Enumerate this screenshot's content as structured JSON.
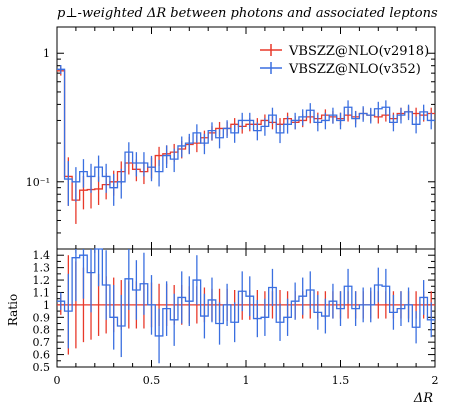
{
  "chart_data": [
    {
      "type": "line",
      "title": "p⊥-weighted ΔR between photons and associated leptons",
      "xlabel": "",
      "ylabel": "",
      "log_y": true,
      "xlim": [
        0,
        2
      ],
      "ylim": [
        0.03,
        1.6
      ],
      "yticks": [
        {
          "value": 1,
          "label": "1"
        },
        {
          "value": 0.1,
          "label": "10⁻¹"
        }
      ],
      "legend": "top-right",
      "bin_edges": [
        0,
        0.04,
        0.08,
        0.12,
        0.16,
        0.2,
        0.24,
        0.28,
        0.32,
        0.36,
        0.4,
        0.44,
        0.48,
        0.52,
        0.56,
        0.6,
        0.64,
        0.68,
        0.72,
        0.76,
        0.8,
        0.84,
        0.88,
        0.92,
        0.96,
        1.0,
        1.04,
        1.08,
        1.12,
        1.16,
        1.2,
        1.24,
        1.28,
        1.32,
        1.36,
        1.4,
        1.44,
        1.48,
        1.52,
        1.56,
        1.6,
        1.64,
        1.68,
        1.72,
        1.76,
        1.8,
        1.84,
        1.88,
        1.92,
        1.96,
        2.0
      ],
      "series": [
        {
          "name": "VBSZZ@NLO(v2918)",
          "color": "#e8392a",
          "values": [
            0.73,
            0.11,
            0.072,
            0.086,
            0.087,
            0.088,
            0.095,
            0.1,
            0.12,
            0.14,
            0.125,
            0.12,
            0.13,
            0.16,
            0.165,
            0.17,
            0.18,
            0.195,
            0.2,
            0.22,
            0.24,
            0.26,
            0.26,
            0.28,
            0.27,
            0.28,
            0.28,
            0.3,
            0.29,
            0.28,
            0.31,
            0.29,
            0.3,
            0.32,
            0.31,
            0.33,
            0.32,
            0.31,
            0.33,
            0.32,
            0.34,
            0.33,
            0.32,
            0.33,
            0.31,
            0.34,
            0.35,
            0.34,
            0.33,
            0.34
          ],
          "errors": [
            0.06,
            0.045,
            0.025,
            0.025,
            0.025,
            0.022,
            0.022,
            0.022,
            0.024,
            0.026,
            0.024,
            0.024,
            0.024,
            0.027,
            0.027,
            0.027,
            0.028,
            0.029,
            0.03,
            0.03,
            0.031,
            0.032,
            0.032,
            0.033,
            0.033,
            0.033,
            0.033,
            0.034,
            0.034,
            0.033,
            0.035,
            0.034,
            0.034,
            0.035,
            0.035,
            0.036,
            0.035,
            0.035,
            0.036,
            0.036,
            0.037,
            0.036,
            0.036,
            0.036,
            0.035,
            0.037,
            0.037,
            0.037,
            0.036,
            0.037
          ]
        },
        {
          "name": "VBSZZ@NLO(v352)",
          "color": "#3a6fe0",
          "values": [
            0.75,
            0.105,
            0.1,
            0.12,
            0.11,
            0.13,
            0.11,
            0.09,
            0.1,
            0.17,
            0.14,
            0.14,
            0.13,
            0.12,
            0.16,
            0.15,
            0.19,
            0.2,
            0.24,
            0.2,
            0.25,
            0.22,
            0.26,
            0.24,
            0.3,
            0.3,
            0.25,
            0.27,
            0.33,
            0.24,
            0.28,
            0.3,
            0.32,
            0.36,
            0.29,
            0.3,
            0.33,
            0.3,
            0.38,
            0.31,
            0.34,
            0.33,
            0.37,
            0.38,
            0.29,
            0.33,
            0.35,
            0.28,
            0.35,
            0.3
          ],
          "errors": [
            0.06,
            0.04,
            0.03,
            0.03,
            0.028,
            0.03,
            0.028,
            0.025,
            0.026,
            0.033,
            0.03,
            0.03,
            0.029,
            0.028,
            0.032,
            0.031,
            0.035,
            0.036,
            0.04,
            0.036,
            0.04,
            0.038,
            0.041,
            0.039,
            0.044,
            0.044,
            0.04,
            0.042,
            0.047,
            0.04,
            0.043,
            0.044,
            0.046,
            0.049,
            0.043,
            0.044,
            0.047,
            0.044,
            0.05,
            0.045,
            0.047,
            0.046,
            0.049,
            0.05,
            0.043,
            0.046,
            0.048,
            0.042,
            0.048,
            0.044
          ]
        }
      ]
    },
    {
      "type": "line",
      "title": "",
      "xlabel": "ΔR",
      "ylabel": "Ratio",
      "xlim": [
        0,
        2
      ],
      "ylim": [
        0.5,
        1.45
      ],
      "xticks": [
        {
          "value": 0,
          "label": "0"
        },
        {
          "value": 0.5,
          "label": "0.5"
        },
        {
          "value": 1,
          "label": "1"
        },
        {
          "value": 1.5,
          "label": "1.5"
        },
        {
          "value": 2,
          "label": "2"
        }
      ],
      "yticks": [
        {
          "value": 0.5,
          "label": "0.5"
        },
        {
          "value": 0.6,
          "label": "0.6"
        },
        {
          "value": 0.7,
          "label": "0.7"
        },
        {
          "value": 0.8,
          "label": "0.8"
        },
        {
          "value": 0.9,
          "label": "0.9"
        },
        {
          "value": 1,
          "label": "1"
        },
        {
          "value": 1.1,
          "label": "1.1"
        },
        {
          "value": 1.2,
          "label": "1.2"
        },
        {
          "value": 1.3,
          "label": "1.3"
        },
        {
          "value": 1.4,
          "label": "1.4"
        }
      ],
      "series": [
        {
          "name": "VBSZZ@NLO(v2918)",
          "color": "#e8392a",
          "values": [
            1,
            1,
            1,
            1,
            1,
            1,
            1,
            1,
            1,
            1,
            1,
            1,
            1,
            1,
            1,
            1,
            1,
            1,
            1,
            1,
            1,
            1,
            1,
            1,
            1,
            1,
            1,
            1,
            1,
            1,
            1,
            1,
            1,
            1,
            1,
            1,
            1,
            1,
            1,
            1,
            1,
            1,
            1,
            1,
            1,
            1,
            1,
            1,
            1,
            1
          ],
          "errors": [
            0.08,
            0.4,
            0.35,
            0.3,
            0.28,
            0.25,
            0.23,
            0.22,
            0.2,
            0.19,
            0.19,
            0.19,
            0.18,
            0.17,
            0.17,
            0.16,
            0.16,
            0.15,
            0.15,
            0.14,
            0.13,
            0.13,
            0.13,
            0.12,
            0.12,
            0.12,
            0.12,
            0.11,
            0.11,
            0.12,
            0.11,
            0.11,
            0.11,
            0.11,
            0.11,
            0.11,
            0.11,
            0.11,
            0.11,
            0.11,
            0.11,
            0.11,
            0.11,
            0.11,
            0.11,
            0.11,
            0.11,
            0.11,
            0.11,
            0.11
          ]
        },
        {
          "name": "VBSZZ@NLO(v352)",
          "color": "#3a6fe0",
          "values": [
            1.03,
            0.95,
            1.38,
            1.4,
            1.26,
            1.48,
            1.16,
            0.9,
            0.83,
            1.21,
            1.12,
            1.17,
            1.0,
            0.75,
            0.97,
            0.88,
            1.06,
            1.03,
            1.2,
            0.91,
            1.04,
            0.85,
            1.0,
            0.86,
            1.11,
            1.07,
            0.89,
            0.9,
            1.14,
            0.86,
            0.9,
            1.03,
            1.07,
            1.12,
            0.94,
            0.91,
            1.03,
            0.97,
            1.15,
            0.97,
            1.0,
            1.0,
            1.16,
            1.15,
            0.94,
            0.97,
            1.0,
            0.82,
            1.06,
            0.88
          ],
          "errors": [
            0.07,
            0.3,
            0.35,
            0.35,
            0.32,
            0.33,
            0.28,
            0.26,
            0.25,
            0.25,
            0.24,
            0.25,
            0.24,
            0.22,
            0.22,
            0.21,
            0.21,
            0.2,
            0.2,
            0.18,
            0.18,
            0.17,
            0.17,
            0.16,
            0.16,
            0.16,
            0.15,
            0.15,
            0.15,
            0.15,
            0.15,
            0.15,
            0.15,
            0.15,
            0.14,
            0.14,
            0.14,
            0.14,
            0.14,
            0.14,
            0.14,
            0.14,
            0.14,
            0.14,
            0.14,
            0.14,
            0.14,
            0.13,
            0.14,
            0.14
          ]
        }
      ]
    }
  ]
}
